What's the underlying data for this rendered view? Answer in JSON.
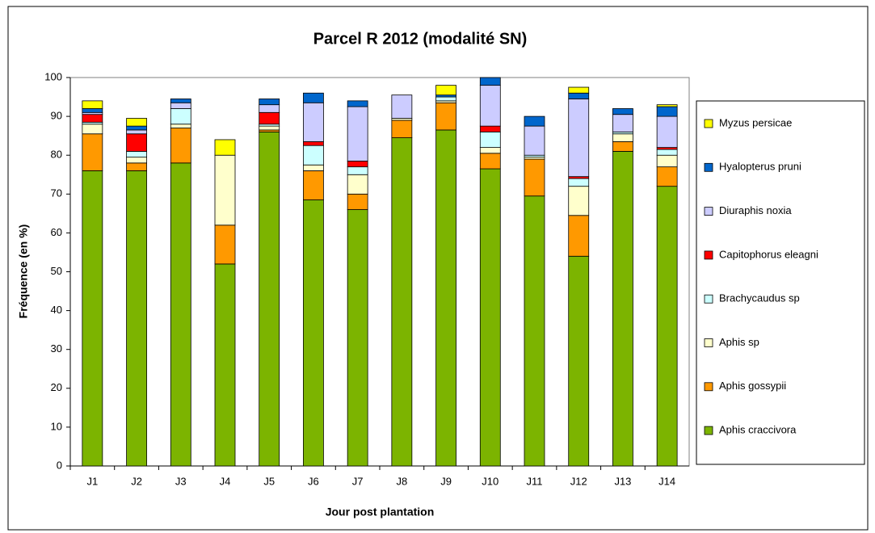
{
  "chart_data": {
    "type": "stacked-bar",
    "title": "Parcel R 2012 (modalité SN)",
    "x_label": "Jour post plantation",
    "y_label": "Fréquence (en %)",
    "categories": [
      "J1",
      "J2",
      "J3",
      "J4",
      "J5",
      "J6",
      "J7",
      "J8",
      "J9",
      "J10",
      "J11",
      "J12",
      "J13",
      "J14"
    ],
    "ylim": [
      0,
      100
    ],
    "yticks": [
      0,
      10,
      20,
      30,
      40,
      50,
      60,
      70,
      80,
      90,
      100
    ],
    "grid": false,
    "legend": "right",
    "series": [
      {
        "name": "Aphis craccivora",
        "color": "#7cb400",
        "values": [
          76,
          76,
          78,
          52,
          86,
          68.5,
          66,
          84.5,
          86.5,
          76.5,
          69.5,
          54,
          81,
          72
        ]
      },
      {
        "name": "Aphis gossypii",
        "color": "#ff9900",
        "values": [
          9.5,
          2,
          9,
          10,
          0.5,
          7.5,
          4,
          4.5,
          7,
          4,
          9.5,
          10.5,
          2.5,
          5
        ]
      },
      {
        "name": "Aphis sp",
        "color": "#ffffcc",
        "values": [
          2.5,
          1.5,
          1,
          18,
          1,
          1.5,
          5,
          0.5,
          0.5,
          1.5,
          0.5,
          7.5,
          2,
          3
        ]
      },
      {
        "name": "Brachycaudus sp",
        "color": "#ccffff",
        "values": [
          0.5,
          1.5,
          4,
          0,
          0.5,
          5,
          2,
          0,
          1,
          4,
          0.5,
          2,
          0.5,
          1.5
        ]
      },
      {
        "name": "Capitophorus eleagni",
        "color": "#ff0000",
        "values": [
          2,
          4.5,
          0,
          0,
          3,
          1,
          1.5,
          0,
          0,
          1.5,
          0,
          0.5,
          0,
          0.5
        ]
      },
      {
        "name": "Diuraphis noxia",
        "color": "#ccccff",
        "values": [
          0.5,
          1,
          1.5,
          0,
          2,
          10,
          14,
          6,
          0,
          10.5,
          7.5,
          20,
          4.5,
          8
        ]
      },
      {
        "name": "Hyalopterus pruni",
        "color": "#0066cc",
        "values": [
          1,
          1,
          1,
          0,
          1.5,
          2.5,
          1.5,
          0,
          0.5,
          2,
          2.5,
          1.5,
          1.5,
          2.5
        ]
      },
      {
        "name": "Myzus persicae",
        "color": "#ffff00",
        "values": [
          2,
          2,
          0,
          4,
          0,
          0,
          0,
          0,
          2.5,
          0,
          0,
          1.5,
          0,
          0.5
        ]
      }
    ]
  }
}
